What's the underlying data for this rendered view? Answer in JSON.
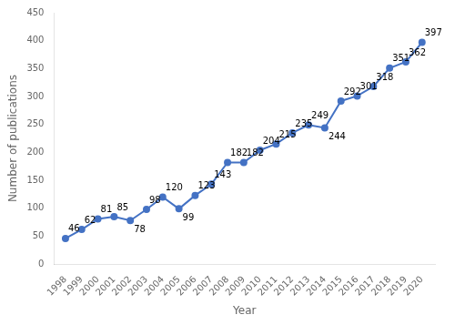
{
  "chart_data": {
    "type": "line",
    "x": [
      1998,
      1999,
      2000,
      2001,
      2002,
      2003,
      2004,
      2005,
      2006,
      2007,
      2008,
      2009,
      2010,
      2011,
      2012,
      2013,
      2014,
      2015,
      2016,
      2017,
      2018,
      2019,
      2020
    ],
    "values": [
      46,
      62,
      81,
      85,
      78,
      98,
      120,
      99,
      123,
      143,
      182,
      182,
      204,
      215,
      235,
      249,
      244,
      292,
      301,
      318,
      351,
      362,
      397
    ],
    "color": "#4472C4",
    "marker": "circle",
    "xlabel": "Year",
    "ylabel": "Number of publications",
    "xlim": [
      1997.3,
      2020.8
    ],
    "xticks": [
      1998,
      1999,
      2000,
      2001,
      2002,
      2003,
      2004,
      2005,
      2006,
      2007,
      2008,
      2009,
      2010,
      2011,
      2012,
      2013,
      2014,
      2015,
      2016,
      2017,
      2018,
      2019,
      2020
    ],
    "ylim": [
      0,
      450
    ],
    "yticks": [
      0,
      50,
      100,
      150,
      200,
      250,
      300,
      350,
      400,
      450
    ],
    "grid": false,
    "data_labels": true
  }
}
